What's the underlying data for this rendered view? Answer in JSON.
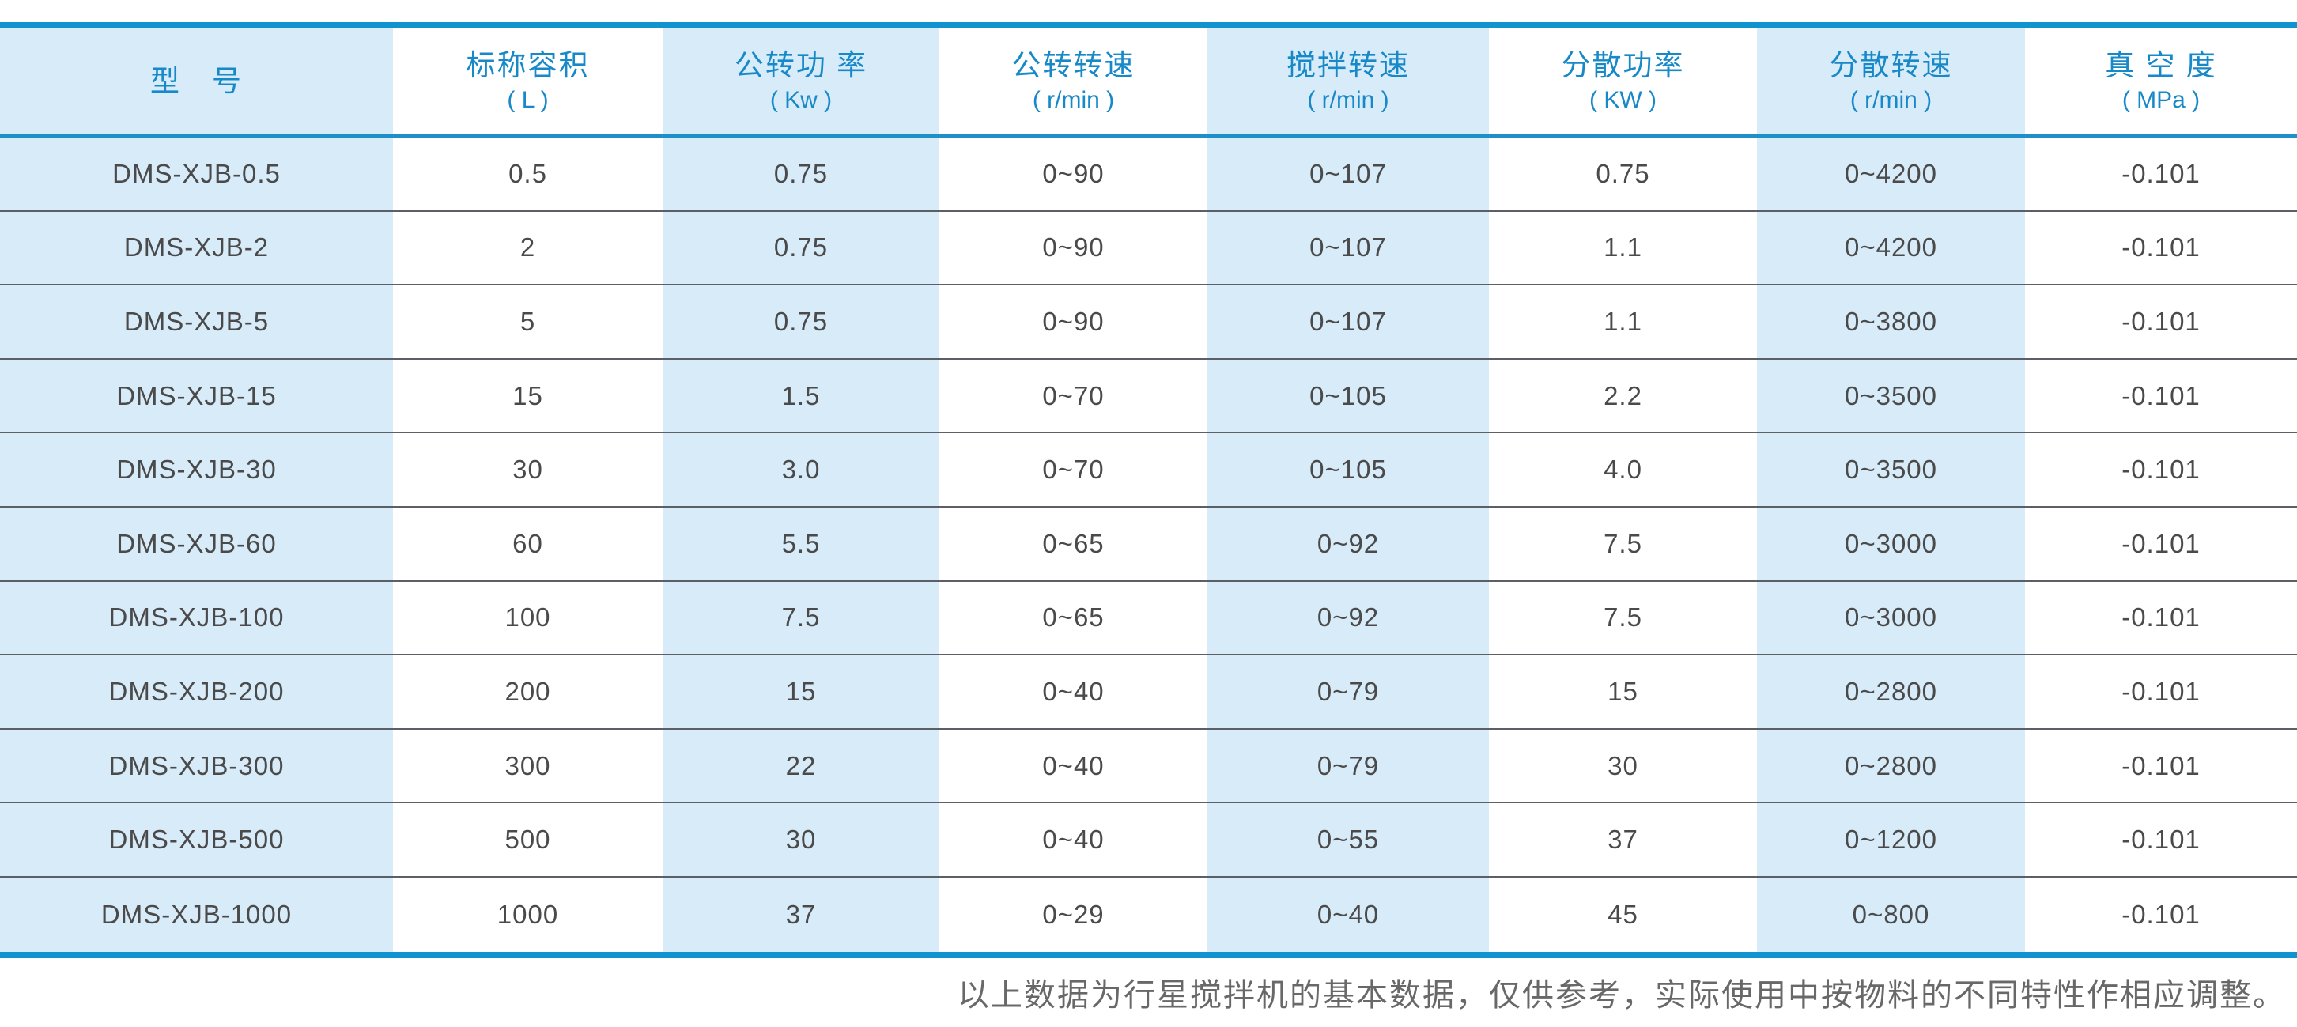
{
  "table": {
    "columns": [
      {
        "title": "型　号",
        "unit": ""
      },
      {
        "title": "标称容积",
        "unit": "( L )"
      },
      {
        "title": "公转功 率",
        "unit": "( Kw )"
      },
      {
        "title": "公转转速",
        "unit": "( r/min )"
      },
      {
        "title": "搅拌转速",
        "unit": "( r/min )"
      },
      {
        "title": "分散功率",
        "unit": "( KW )"
      },
      {
        "title": "分散转速",
        "unit": "( r/min )"
      },
      {
        "title": "真 空 度",
        "unit": "( MPa )"
      }
    ],
    "rows": [
      {
        "values": [
          "DMS-XJB-0.5",
          "0.5",
          "0.75",
          "0~90",
          "0~107",
          "0.75",
          "0~4200",
          "-0.101"
        ]
      },
      {
        "values": [
          "DMS-XJB-2",
          "2",
          "0.75",
          "0~90",
          "0~107",
          "1.1",
          "0~4200",
          "-0.101"
        ]
      },
      {
        "values": [
          "DMS-XJB-5",
          "5",
          "0.75",
          "0~90",
          "0~107",
          "1.1",
          "0~3800",
          "-0.101"
        ]
      },
      {
        "values": [
          "DMS-XJB-15",
          "15",
          "1.5",
          "0~70",
          "0~105",
          "2.2",
          "0~3500",
          "-0.101"
        ]
      },
      {
        "values": [
          "DMS-XJB-30",
          "30",
          "3.0",
          "0~70",
          "0~105",
          "4.0",
          "0~3500",
          "-0.101"
        ]
      },
      {
        "values": [
          "DMS-XJB-60",
          "60",
          "5.5",
          "0~65",
          "0~92",
          "7.5",
          "0~3000",
          "-0.101"
        ]
      },
      {
        "values": [
          "DMS-XJB-100",
          "100",
          "7.5",
          "0~65",
          "0~92",
          "7.5",
          "0~3000",
          "-0.101"
        ]
      },
      {
        "values": [
          "DMS-XJB-200",
          "200",
          "15",
          "0~40",
          "0~79",
          "15",
          "0~2800",
          "-0.101"
        ]
      },
      {
        "values": [
          "DMS-XJB-300",
          "300",
          "22",
          "0~40",
          "0~79",
          "30",
          "0~2800",
          "-0.101"
        ]
      },
      {
        "values": [
          "DMS-XJB-500",
          "500",
          "30",
          "0~40",
          "0~55",
          "37",
          "0~1200",
          "-0.101"
        ]
      },
      {
        "values": [
          "DMS-XJB-1000",
          "1000",
          "37",
          "0~29",
          "0~40",
          "45",
          "0~800",
          "-0.101"
        ]
      }
    ]
  },
  "footer": {
    "note": "以上数据为行星搅拌机的基本数据，仅供参考，实际使用中按物料的不同特性作相应调整。"
  },
  "colors": {
    "accent_blue": "#1193d0",
    "header_text_blue": "#1889c8",
    "column_stripe_blue": "#d8ebf9",
    "data_text_gray": "#4a4a4a",
    "row_divider_gray": "#5c6066",
    "footer_text_gray": "#686868"
  }
}
